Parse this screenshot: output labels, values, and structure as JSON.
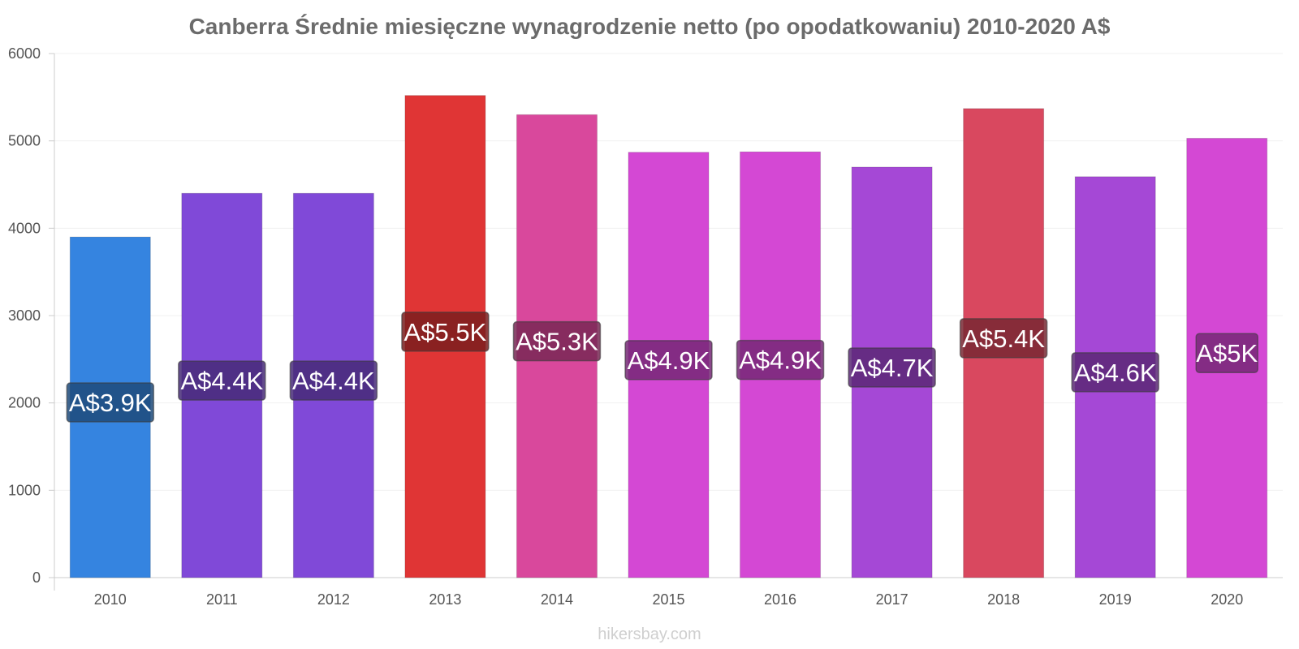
{
  "chart_data": {
    "type": "bar",
    "title": "Canberra Średnie miesięczne wynagrodzenie netto (po opodatkowaniu) 2010-2020 A$",
    "xlabel": "",
    "ylabel": "",
    "ylim": [
      0,
      6000
    ],
    "yticks": [
      "0",
      "1000",
      "2000",
      "3000",
      "4000",
      "5000",
      "6000"
    ],
    "grid": true,
    "categories": [
      "2010",
      "2011",
      "2012",
      "2013",
      "2014",
      "2015",
      "2016",
      "2017",
      "2018",
      "2019",
      "2020"
    ],
    "values": [
      3900,
      4400,
      4400,
      5520,
      5300,
      4870,
      4875,
      4700,
      5370,
      4590,
      5030
    ],
    "data_labels": [
      "A$3.9K",
      "A$4.4K",
      "A$4.4K",
      "A$5.5K",
      "A$5.3K",
      "A$4.9K",
      "A$4.9K",
      "A$4.7K",
      "A$5.4K",
      "A$4.6K",
      "A$5K"
    ],
    "bar_colors": [
      "#3584e0",
      "#8049d8",
      "#8049d8",
      "#e03535",
      "#d9489c",
      "#d448d4",
      "#d448d4",
      "#a548d6",
      "#d9485f",
      "#a548d6",
      "#d448d4"
    ],
    "label_box_colors": [
      "#1d4a7a",
      "#472a78",
      "#472a78",
      "#7a1d1d",
      "#782855",
      "#752875",
      "#752875",
      "#5a2876",
      "#782833",
      "#5a2876",
      "#752875"
    ]
  },
  "footer": {
    "credit": "hikersbay.com"
  }
}
